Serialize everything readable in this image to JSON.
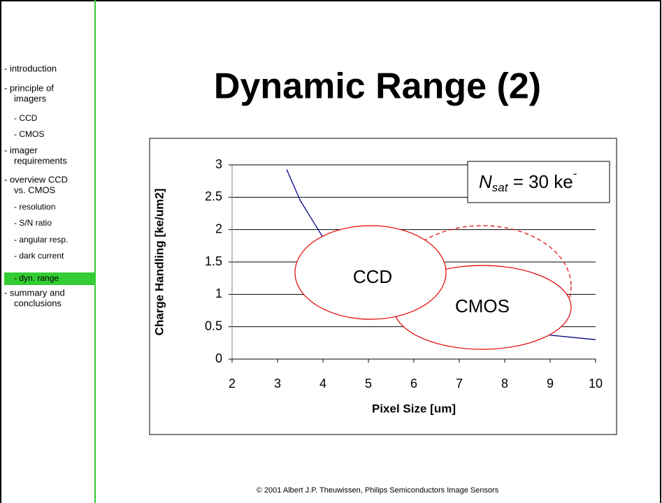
{
  "sidebar": {
    "items": [
      [
        "- introduction"
      ],
      [
        "- principle of",
        "imagers"
      ],
      [
        "- CCD"
      ],
      [
        "- CMOS"
      ],
      [
        "- imager",
        "requirements"
      ],
      [
        "- overview CCD",
        "vs. CMOS"
      ],
      [
        "- resolution"
      ],
      [
        "- S/N ratio"
      ],
      [
        "- angular resp."
      ],
      [
        "- dark current"
      ],
      [
        "- dyn. range"
      ],
      [
        "- summary and",
        "conclusions"
      ]
    ],
    "active": 10
  },
  "title": "Dynamic Range (2)",
  "chart_data": {
    "type": "line",
    "x_label": "Pixel Size [um]",
    "y_label": "Charge Handling [ke/um2]",
    "x": [
      3.2,
      3.5,
      4,
      4.5,
      5,
      5.5,
      6,
      7,
      8,
      9,
      10
    ],
    "series": [
      {
        "color": "#000080",
        "values": [
          2.93,
          2.45,
          1.88,
          1.48,
          1.2,
          0.99,
          0.83,
          0.61,
          0.47,
          0.37,
          0.3
        ]
      }
    ],
    "xlim": [
      2,
      10
    ],
    "ylim": [
      0,
      3
    ],
    "xticks": [
      2,
      3,
      4,
      5,
      6,
      7,
      8,
      9,
      10
    ],
    "yticks": [
      0,
      0.5,
      1,
      1.5,
      2,
      2.5,
      3
    ],
    "grid": true,
    "annotations": {
      "nsat": [
        "N",
        "sat",
        " = 30 ke",
        "-"
      ],
      "ccd": "CCD",
      "cmos": "CMOS"
    }
  },
  "footer": "© 2001 Albert J.P. Theuwissen, Philips Semiconductors Image Sensors"
}
